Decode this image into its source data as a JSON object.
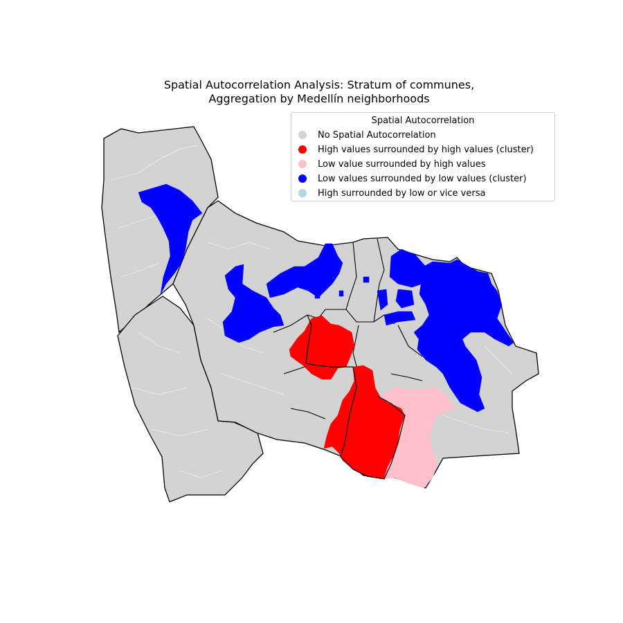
{
  "map": {
    "title_line1": "Spatial Autocorrelation Analysis: Stratum of communes,",
    "title_line2": "Aggregation by Medellín neighborhoods"
  },
  "legend": {
    "title": "Spatial Autocorrelation",
    "items": [
      {
        "label": "No Spatial Autocorrelation",
        "color": "#d3d3d3"
      },
      {
        "label": "High values surrounded by high values (cluster)",
        "color": "#ff0000"
      },
      {
        "label": "Low value surrounded by high values",
        "color": "#ffc0cb"
      },
      {
        "label": "Low values surrounded by low values (cluster)",
        "color": "#0000ff"
      },
      {
        "label": "High surrounded by low or vice versa",
        "color": "#add8e6"
      }
    ]
  }
}
